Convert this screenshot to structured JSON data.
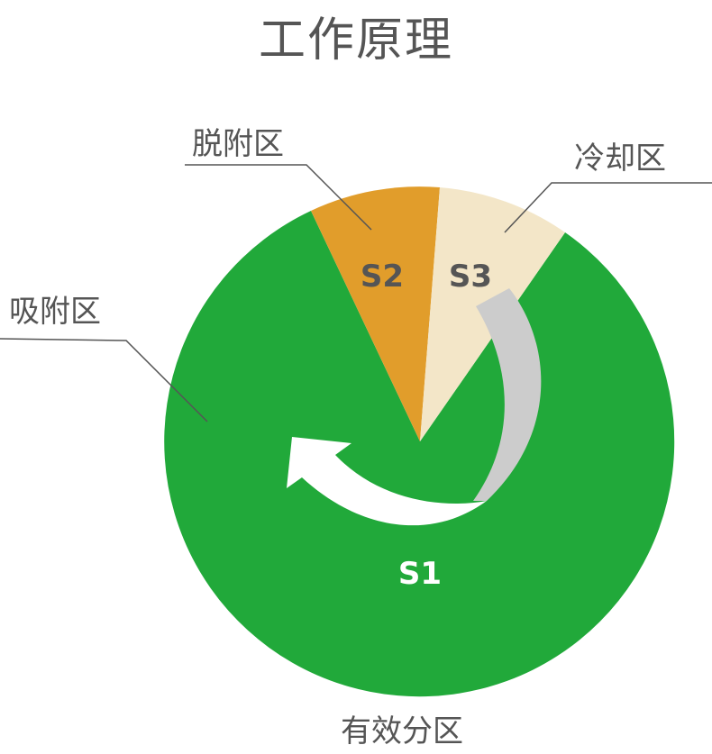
{
  "title": "工作原理",
  "zones": {
    "desorption": {
      "label": "脱附区",
      "segment": "S2",
      "color": "#e19d2b"
    },
    "cooling": {
      "label": "冷却区",
      "segment": "S3",
      "color": "#f3e6c8"
    },
    "adsorption": {
      "label": "吸附区",
      "segment": "S1",
      "color": "#21a93a"
    },
    "effective": {
      "label": "有效分区"
    }
  },
  "colors": {
    "text": "#555555",
    "return_arrow": "#cccccc",
    "rotation_arrow": "#ffffff"
  }
}
